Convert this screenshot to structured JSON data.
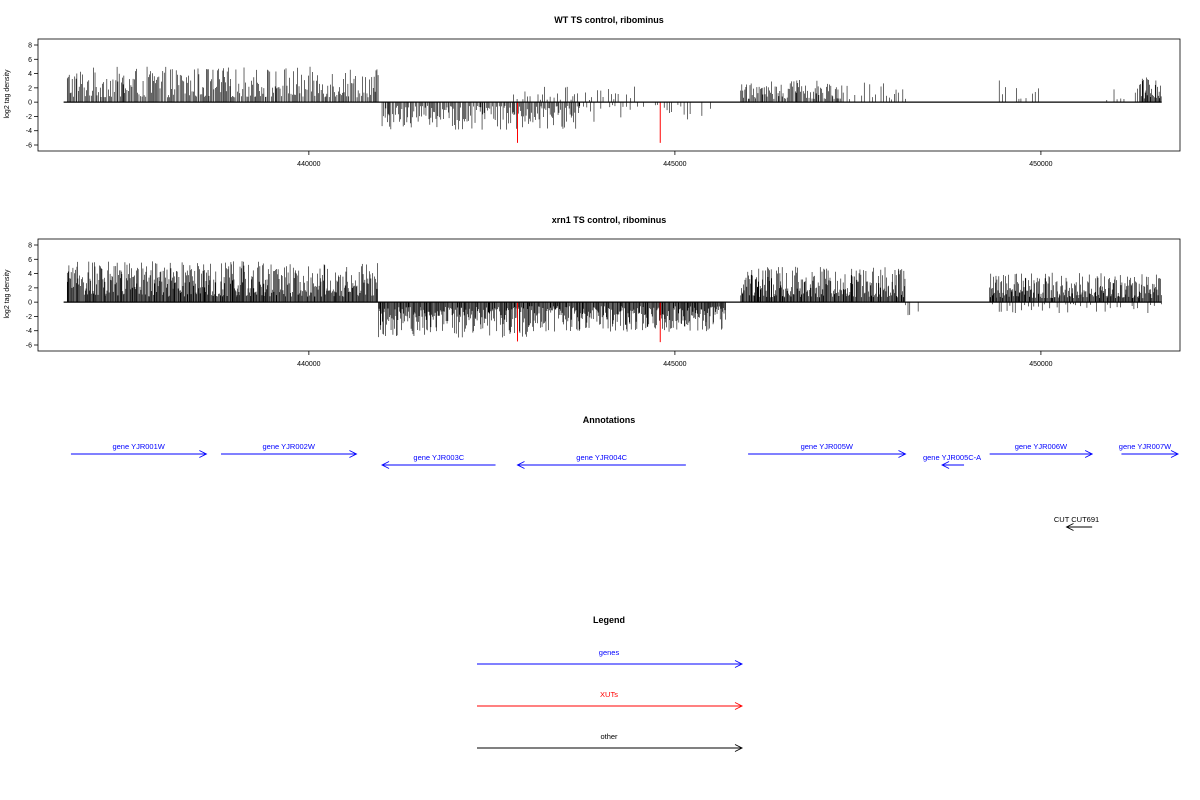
{
  "chart_data": [
    {
      "type": "bar",
      "title": "WT TS control, ribominus",
      "ylabel": "log2 tag density",
      "ylim": [
        -6,
        8
      ],
      "yticks": [
        8,
        6,
        4,
        2,
        0,
        -2,
        -4,
        -6
      ],
      "xlim": [
        436300,
        451900
      ],
      "xticks": [
        440000,
        445000,
        450000
      ],
      "x_range": [
        436650,
        451650
      ],
      "grid": false,
      "regions": [
        {
          "start": 436700,
          "end": 440950,
          "sign": 1,
          "max": 4.5,
          "density": "medium"
        },
        {
          "start": 441000,
          "end": 443700,
          "sign": -1,
          "max": 3.5,
          "density": "medium"
        },
        {
          "start": 442700,
          "end": 444500,
          "sign": 1,
          "max": 2.0,
          "density": "sparse"
        },
        {
          "start": 443700,
          "end": 445500,
          "sign": -1,
          "max": 2.5,
          "density": "sparse"
        },
        {
          "start": 445900,
          "end": 447300,
          "sign": 1,
          "max": 3.0,
          "density": "medium"
        },
        {
          "start": 447300,
          "end": 448200,
          "sign": 1,
          "max": 2.5,
          "density": "sparse"
        },
        {
          "start": 449400,
          "end": 450000,
          "sign": 1,
          "max": 2.8,
          "density": "sparse"
        },
        {
          "start": 450900,
          "end": 451350,
          "sign": 1,
          "max": 2.0,
          "density": "sparse"
        },
        {
          "start": 451350,
          "end": 451650,
          "sign": 1,
          "max": 3.2,
          "density": "dense"
        }
      ],
      "highlights": [
        {
          "x": 442850,
          "value": -5.7,
          "color": "#ff0000"
        },
        {
          "x": 444800,
          "value": -5.7,
          "color": "#ff0000"
        }
      ]
    },
    {
      "type": "bar",
      "title": "xrn1 TS control, ribominus",
      "ylabel": "log2 tag density",
      "ylim": [
        -6,
        8
      ],
      "yticks": [
        8,
        6,
        4,
        2,
        0,
        -2,
        -4,
        -6
      ],
      "xlim": [
        436300,
        451900
      ],
      "xticks": [
        440000,
        445000,
        450000
      ],
      "x_range": [
        436650,
        451650
      ],
      "grid": false,
      "regions": [
        {
          "start": 436700,
          "end": 440950,
          "sign": 1,
          "max": 5.2,
          "density": "dense"
        },
        {
          "start": 440950,
          "end": 443000,
          "sign": -1,
          "max": 4.5,
          "density": "dense"
        },
        {
          "start": 443000,
          "end": 445700,
          "sign": -1,
          "max": 3.8,
          "density": "dense"
        },
        {
          "start": 445900,
          "end": 448150,
          "sign": 1,
          "max": 4.5,
          "density": "dense"
        },
        {
          "start": 448150,
          "end": 448400,
          "sign": -1,
          "max": 1.8,
          "density": "sparse"
        },
        {
          "start": 449300,
          "end": 451650,
          "sign": 1,
          "max": 3.8,
          "density": "dense"
        },
        {
          "start": 449300,
          "end": 451650,
          "sign": -1,
          "max": 1.5,
          "density": "sparse"
        }
      ],
      "highlights": [
        {
          "x": 442850,
          "value": -5.5,
          "color": "#ff0000"
        },
        {
          "x": 444800,
          "value": -5.6,
          "color": "#ff0000"
        }
      ]
    }
  ],
  "annotations": {
    "title": "Annotations",
    "items": [
      {
        "label": "gene YJR001W",
        "start": 436750,
        "end": 438600,
        "strand": "+",
        "row": 0,
        "color": "#0000ff"
      },
      {
        "label": "gene YJR002W",
        "start": 438800,
        "end": 440650,
        "strand": "+",
        "row": 0,
        "color": "#0000ff"
      },
      {
        "label": "gene YJR003C",
        "start": 441000,
        "end": 442550,
        "strand": "-",
        "row": 1,
        "color": "#0000ff"
      },
      {
        "label": "gene YJR004C",
        "start": 442850,
        "end": 445150,
        "strand": "-",
        "row": 1,
        "color": "#0000ff"
      },
      {
        "label": "gene YJR005W",
        "start": 446000,
        "end": 448150,
        "strand": "+",
        "row": 0,
        "color": "#0000ff"
      },
      {
        "label": "gene YJR005C-A",
        "start": 448650,
        "end": 448950,
        "strand": "-",
        "row": 2,
        "color": "#0000ff"
      },
      {
        "label": "gene YJR006W",
        "start": 449300,
        "end": 450700,
        "strand": "+",
        "row": 0,
        "color": "#0000ff"
      },
      {
        "label": "gene YJR007W",
        "start": 451100,
        "end": 452050,
        "strand": "+",
        "row": 0,
        "color": "#0000ff"
      },
      {
        "label": "CUT CUT691",
        "start": 450350,
        "end": 450700,
        "strand": "-",
        "row": 3,
        "color": "#000000"
      }
    ]
  },
  "legend": {
    "title": "Legend",
    "items": [
      {
        "label": "genes",
        "color": "#0000ff"
      },
      {
        "label": "XUTs",
        "color": "#ff0000"
      },
      {
        "label": "other",
        "color": "#000000"
      }
    ]
  }
}
